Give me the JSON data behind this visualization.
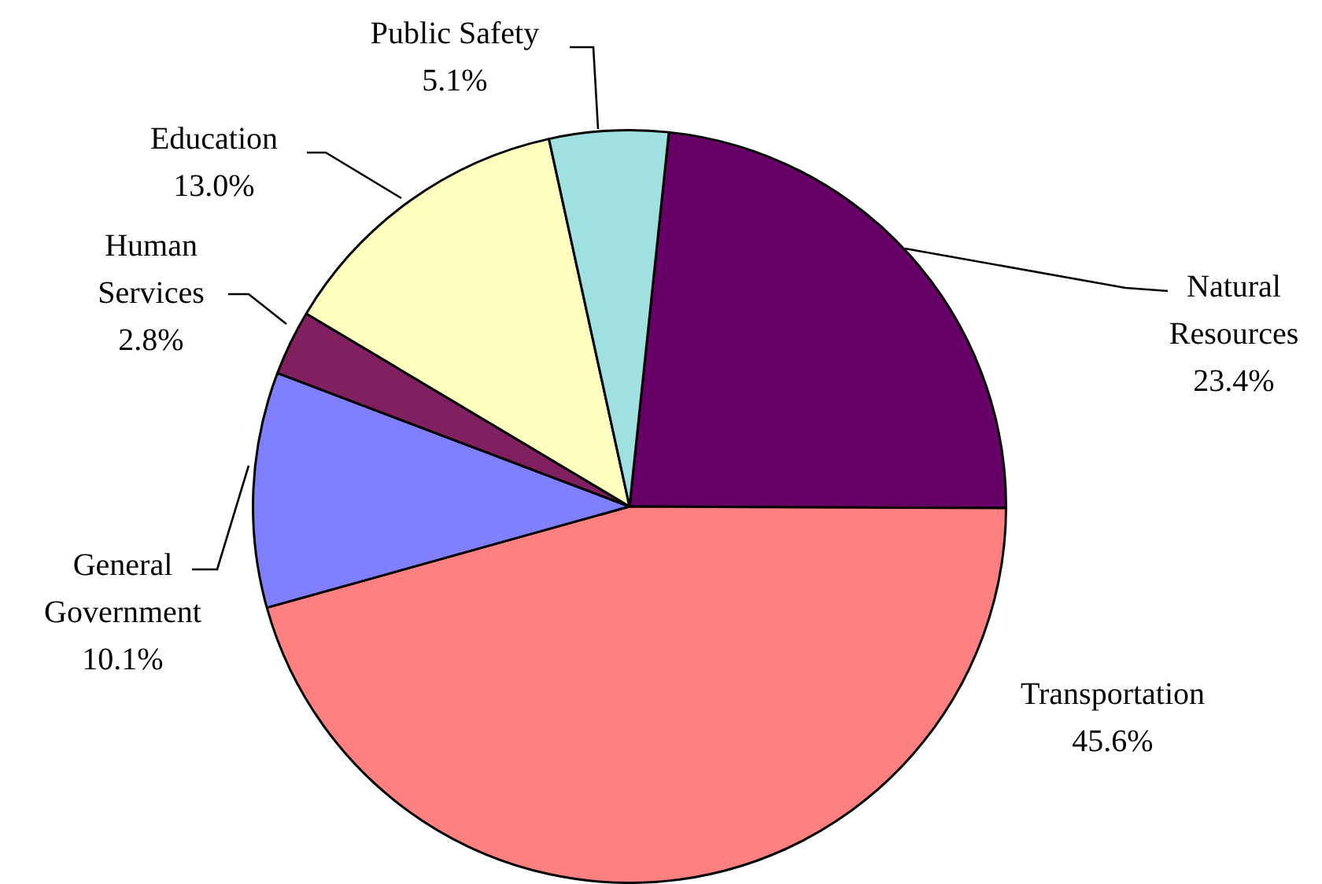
{
  "chart_data": {
    "type": "pie",
    "categories": [
      "Natural Resources",
      "Transportation",
      "General Government",
      "Human Services",
      "Education",
      "Public Safety"
    ],
    "values": [
      23.4,
      45.6,
      10.1,
      2.8,
      13.0,
      5.1
    ],
    "value_labels": [
      "23.4%",
      "45.6%",
      "10.1%",
      "2.8%",
      "13.0%",
      "5.1%"
    ],
    "colors": [
      "#660066",
      "#ff8080",
      "#8080ff",
      "#802060",
      "#ffffc0",
      "#a0e0e0"
    ],
    "legend": false
  }
}
